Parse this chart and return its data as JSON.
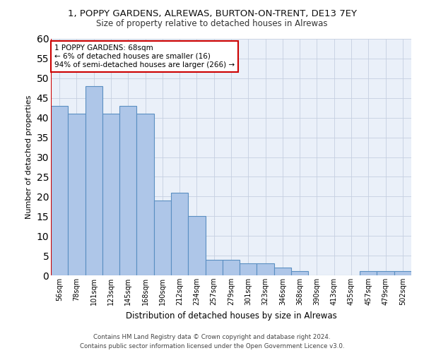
{
  "title_line1": "1, POPPY GARDENS, ALREWAS, BURTON-ON-TRENT, DE13 7EY",
  "title_line2": "Size of property relative to detached houses in Alrewas",
  "xlabel": "Distribution of detached houses by size in Alrewas",
  "ylabel": "Number of detached properties",
  "categories": [
    "56sqm",
    "78sqm",
    "101sqm",
    "123sqm",
    "145sqm",
    "168sqm",
    "190sqm",
    "212sqm",
    "234sqm",
    "257sqm",
    "279sqm",
    "301sqm",
    "323sqm",
    "346sqm",
    "368sqm",
    "390sqm",
    "413sqm",
    "435sqm",
    "457sqm",
    "479sqm",
    "502sqm"
  ],
  "values": [
    43,
    41,
    48,
    41,
    43,
    41,
    19,
    21,
    15,
    4,
    4,
    3,
    3,
    2,
    1,
    0,
    0,
    0,
    1,
    1,
    1
  ],
  "bar_color": "#aec6e8",
  "bar_edge_color": "#5a8fc2",
  "background_color": "#eaf0f9",
  "grid_color": "#c5cfe0",
  "vline_color": "#cc0000",
  "annotation_text": "1 POPPY GARDENS: 68sqm\n← 6% of detached houses are smaller (16)\n94% of semi-detached houses are larger (266) →",
  "annotation_box_color": "#ffffff",
  "annotation_box_edge": "#cc0000",
  "ylim": [
    0,
    60
  ],
  "yticks": [
    0,
    5,
    10,
    15,
    20,
    25,
    30,
    35,
    40,
    45,
    50,
    55,
    60
  ],
  "footer_line1": "Contains HM Land Registry data © Crown copyright and database right 2024.",
  "footer_line2": "Contains public sector information licensed under the Open Government Licence v3.0."
}
